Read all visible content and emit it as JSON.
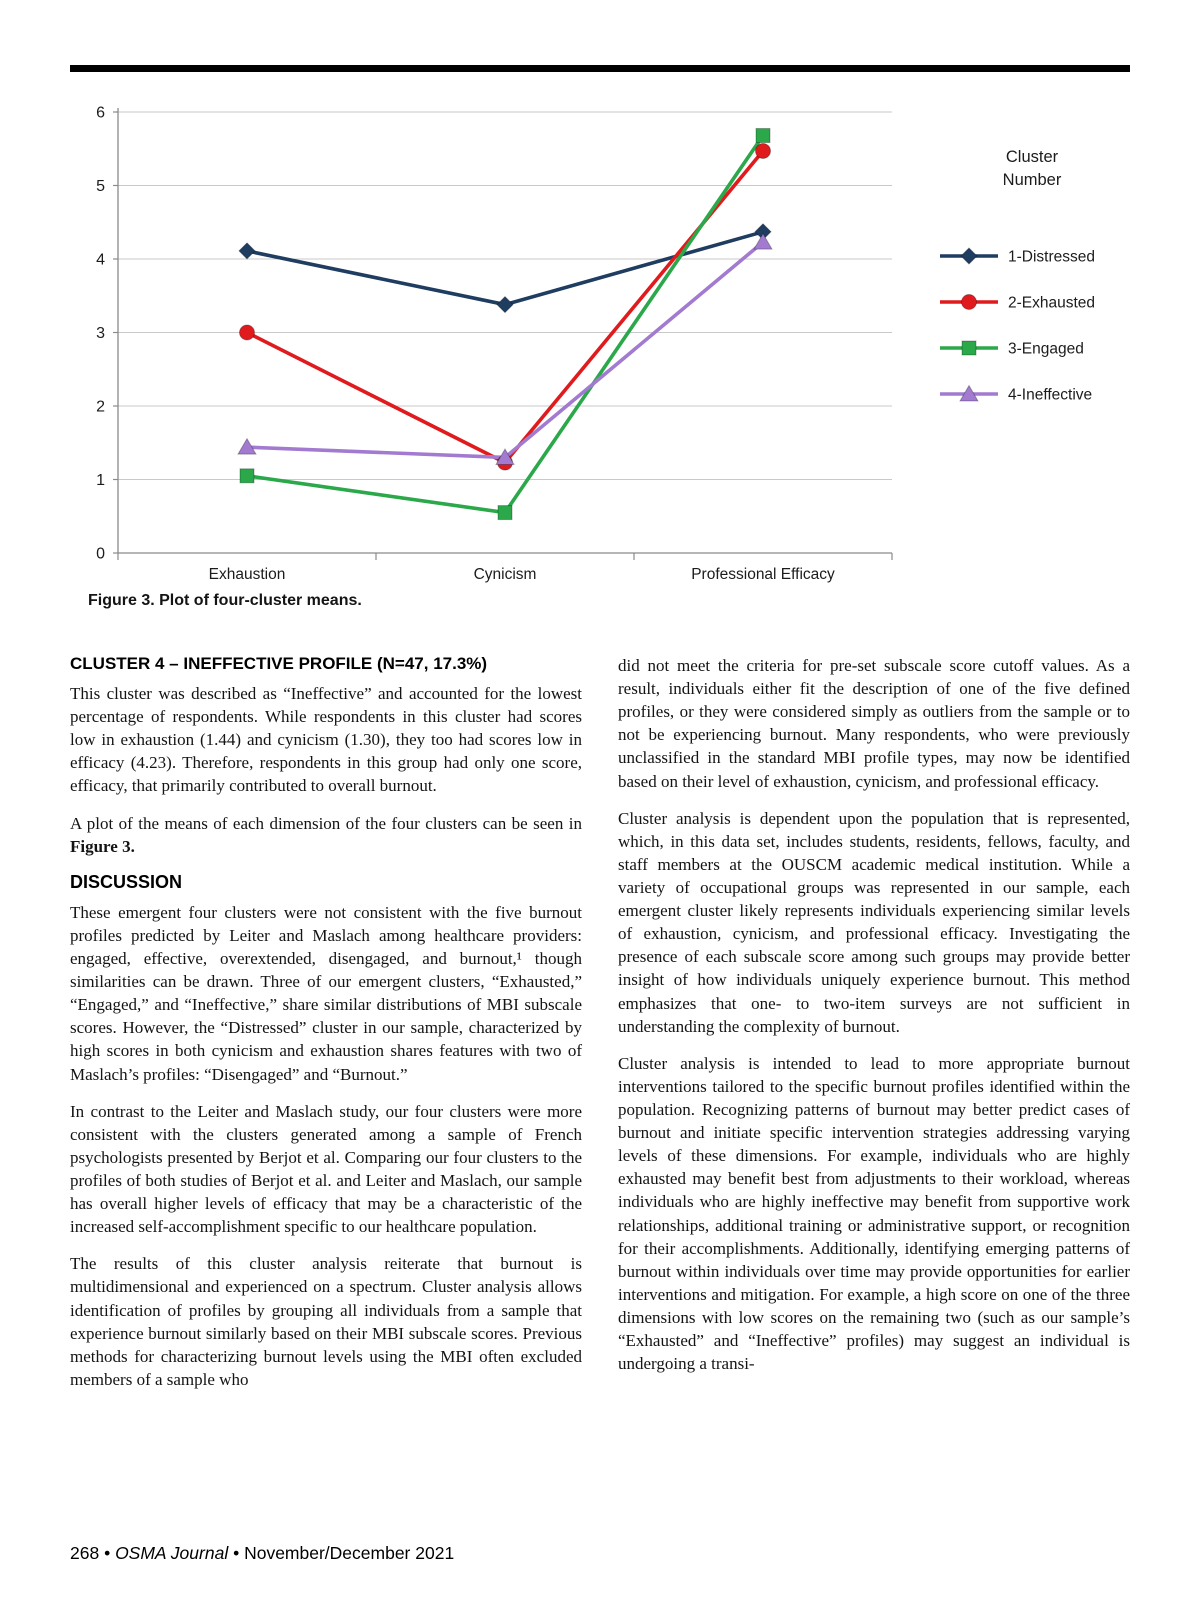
{
  "figure": {
    "caption": "Figure 3. Plot of four-cluster means."
  },
  "chart_data": {
    "type": "line",
    "title": "",
    "categories": [
      "Exhaustion",
      "Cynicism",
      "Professional Efficacy"
    ],
    "series": [
      {
        "name": "1-Distressed",
        "marker": "diamond",
        "color": "#1f3c61",
        "values": [
          4.11,
          3.38,
          4.37
        ]
      },
      {
        "name": "2-Exhausted",
        "marker": "circle",
        "color": "#e01b1e",
        "values": [
          3.0,
          1.23,
          5.47
        ]
      },
      {
        "name": "3-Engaged",
        "marker": "square",
        "color": "#2ba84a",
        "values": [
          1.05,
          0.55,
          5.68
        ]
      },
      {
        "name": "4-Ineffective",
        "marker": "triangle",
        "color": "#a27bd0",
        "values": [
          1.44,
          1.3,
          4.23
        ]
      }
    ],
    "legend_title": "Cluster Number",
    "legend_position": "right",
    "xlabel": "",
    "ylabel": "",
    "ylim": [
      0,
      6
    ],
    "yticks": [
      0,
      1,
      2,
      3,
      4,
      5,
      6
    ],
    "grid": true
  },
  "article": {
    "left": {
      "h1": "CLUSTER 4 – INEFFECTIVE PROFILE (N=47, 17.3%)",
      "p1": "This cluster was described as “Ineffective” and accounted for the lowest percentage of respondents. While respondents in this cluster had scores low in exhaustion (1.44) and cynicism (1.30), they too had scores low in efficacy (4.23). Therefore, respondents in this group had only one score, efficacy, that primarily contributed to overall burnout.",
      "p2_pre": "A plot of the means of each dimension of the four clusters can be seen in ",
      "p2_bold": "Figure 3.",
      "h2": "DISCUSSION",
      "p3": "These emergent four clusters were not consistent with the five burnout profiles predicted by Leiter and Maslach among healthcare providers: engaged, effective, overextended, disengaged, and burnout,¹ though similarities can be drawn. Three of our emergent clusters, “Exhausted,” “Engaged,” and “Ineffective,” share similar distributions of MBI subscale scores. However, the “Distressed” cluster in our sample, characterized by high scores in both cynicism and exhaustion shares features with two of Maslach’s profiles: “Disengaged” and “Burnout.”",
      "p4": "In contrast to the Leiter and Maslach study, our four clusters were more consistent with the clusters generated among a sample of French psychologists presented by Berjot et al. Comparing our four clusters to the profiles of both studies of Berjot et al. and Leiter and Maslach, our sample has overall higher levels of efficacy that may be a characteristic of the increased self-accomplishment specific to our healthcare population.",
      "p5": "The results of this cluster analysis reiterate that burnout is multidimensional and experienced on a spectrum. Cluster analysis allows identification of profiles by grouping all individuals from a sample that experience burnout similarly based on their MBI subscale scores. Previous methods for characterizing burnout levels using the MBI often excluded members of a sample who"
    },
    "right": {
      "p1": "did not meet the criteria for pre-set subscale score cutoff values. As a result, individuals either fit the description of one of the five defined profiles, or they were considered simply as outliers from the sample or to not be experiencing burnout. Many respondents, who were previously unclassified in the standard MBI profile types, may now be identified based on their level of exhaustion, cynicism, and professional efficacy.",
      "p2": "Cluster analysis is dependent upon the population that is represented, which, in this data set, includes students, residents, fellows, faculty, and staff members at the OUSCM academic medical institution. While a variety of occupational groups was represented in our sample, each emergent cluster likely represents individuals experiencing similar levels of exhaustion, cynicism, and professional efficacy. Investigating the presence of each subscale score among such groups may provide better insight of how individuals uniquely experience burnout. This method emphasizes that one- to two-item surveys are not sufficient in understanding the complexity of burnout.",
      "p3": "Cluster analysis is intended to lead to more appropriate burnout interventions tailored to the specific burnout profiles identified within the population. Recognizing patterns of burnout may better predict cases of burnout and initiate specific intervention strategies addressing varying levels of these dimensions. For example, individuals who are highly exhausted may benefit best from adjustments to their workload, whereas individuals who are highly ineffective may benefit from supportive work relationships, additional training or administrative support, or recognition for their accomplishments. Additionally, identifying emerging patterns of burnout within individuals over time may provide opportunities for earlier interventions and mitigation. For example, a high score on one of the three dimensions with low scores on the remaining two (such as our sample’s “Exhausted” and “Ineffective” profiles) may suggest an individual is undergoing a transi-"
    }
  },
  "footer": {
    "page": "268",
    "sep1": " • ",
    "journal": "OSMA Journal",
    "rest": " • November/December 2021"
  }
}
